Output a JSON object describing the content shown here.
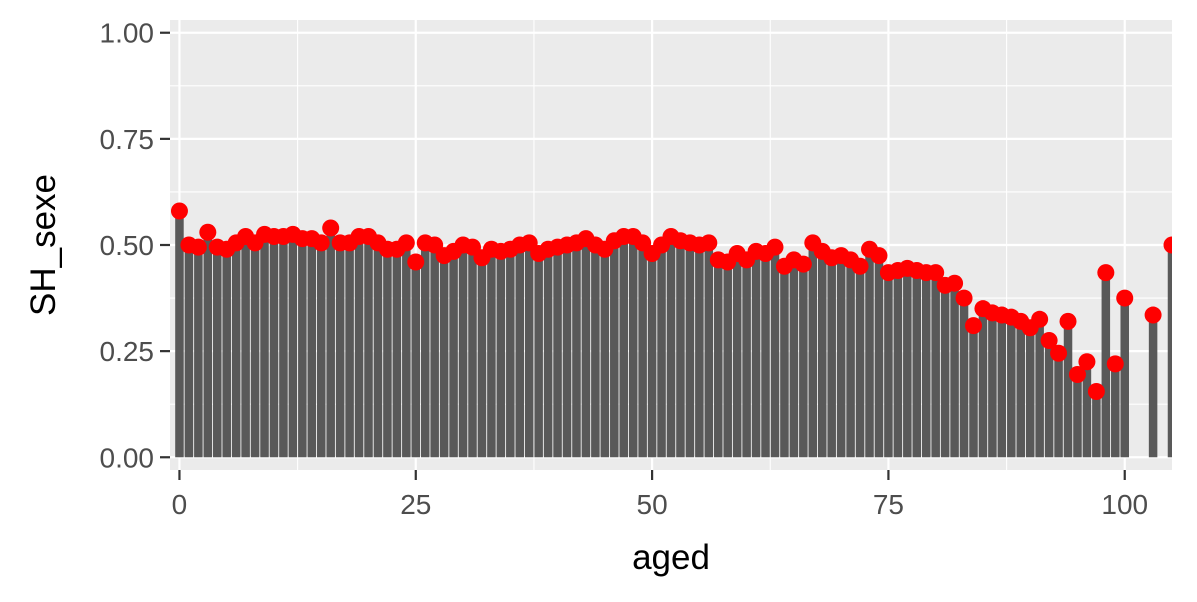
{
  "chart_data": {
    "type": "bar",
    "xlabel": "aged",
    "ylabel": "SH_sexe",
    "xlim": [
      -1,
      105
    ],
    "ylim": [
      -0.03,
      1.03
    ],
    "x_ticks": [
      0,
      25,
      50,
      75,
      100
    ],
    "x_tick_labels": [
      "0",
      "25",
      "50",
      "75",
      "100"
    ],
    "y_ticks": [
      0,
      0.25,
      0.5,
      0.75,
      1.0
    ],
    "y_tick_labels": [
      "0.00",
      "0.25",
      "0.50",
      "0.75",
      "1.00"
    ],
    "grid": true,
    "legend": "none",
    "colors": {
      "panel": "#ebebeb",
      "grid": "#ffffff",
      "bar": "#595959",
      "point": "#ff0000",
      "tick": "#333333"
    },
    "x": [
      0,
      1,
      2,
      3,
      4,
      5,
      6,
      7,
      8,
      9,
      10,
      11,
      12,
      13,
      14,
      15,
      16,
      17,
      18,
      19,
      20,
      21,
      22,
      23,
      24,
      25,
      26,
      27,
      28,
      29,
      30,
      31,
      32,
      33,
      34,
      35,
      36,
      37,
      38,
      39,
      40,
      41,
      42,
      43,
      44,
      45,
      46,
      47,
      48,
      49,
      50,
      51,
      52,
      53,
      54,
      55,
      56,
      57,
      58,
      59,
      60,
      61,
      62,
      63,
      64,
      65,
      66,
      67,
      68,
      69,
      70,
      71,
      72,
      73,
      74,
      75,
      76,
      77,
      78,
      79,
      80,
      81,
      82,
      83,
      84,
      85,
      86,
      87,
      88,
      89,
      90,
      91,
      92,
      93,
      94,
      95,
      96,
      97,
      98,
      99,
      100,
      103,
      105
    ],
    "values": [
      0.58,
      0.5,
      0.495,
      0.53,
      0.495,
      0.49,
      0.505,
      0.52,
      0.505,
      0.525,
      0.52,
      0.52,
      0.525,
      0.515,
      0.515,
      0.505,
      0.54,
      0.505,
      0.505,
      0.52,
      0.52,
      0.505,
      0.49,
      0.49,
      0.505,
      0.46,
      0.505,
      0.5,
      0.475,
      0.485,
      0.5,
      0.495,
      0.47,
      0.49,
      0.485,
      0.49,
      0.5,
      0.505,
      0.48,
      0.49,
      0.495,
      0.5,
      0.505,
      0.515,
      0.5,
      0.49,
      0.51,
      0.52,
      0.52,
      0.505,
      0.48,
      0.5,
      0.52,
      0.51,
      0.505,
      0.5,
      0.505,
      0.465,
      0.46,
      0.48,
      0.465,
      0.485,
      0.48,
      0.495,
      0.45,
      0.465,
      0.455,
      0.505,
      0.485,
      0.47,
      0.475,
      0.465,
      0.45,
      0.49,
      0.475,
      0.435,
      0.44,
      0.445,
      0.44,
      0.435,
      0.435,
      0.405,
      0.41,
      0.375,
      0.31,
      0.35,
      0.34,
      0.335,
      0.33,
      0.32,
      0.305,
      0.325,
      0.275,
      0.245,
      0.32,
      0.195,
      0.225,
      0.155,
      0.435,
      0.22,
      0.375,
      0.335,
      0.5
    ]
  }
}
